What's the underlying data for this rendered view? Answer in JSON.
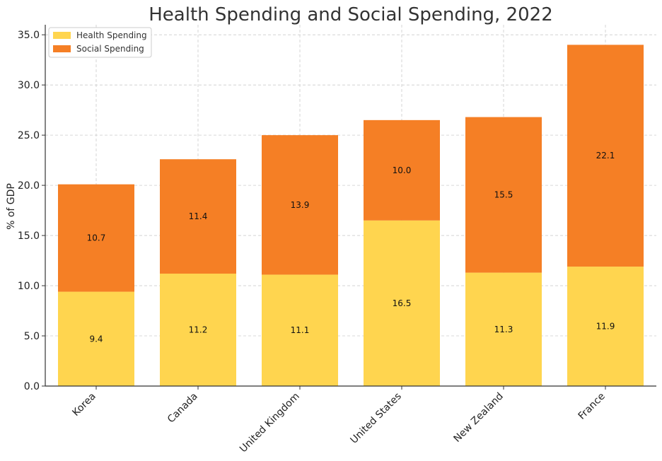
{
  "chart_data": {
    "type": "bar",
    "stacked": true,
    "title": "Health Spending and Social Spending, 2022",
    "xlabel": "",
    "ylabel": "% of GDP",
    "ylim": [
      0,
      36
    ],
    "yticks": [
      "0.0",
      "5.0",
      "10.0",
      "15.0",
      "20.0",
      "25.0",
      "30.0",
      "35.0"
    ],
    "categories": [
      "Korea",
      "Canada",
      "United Kingdom",
      "United States",
      "New Zealand",
      "France"
    ],
    "series": [
      {
        "name": "Health Spending",
        "color": "#FFD54F",
        "values": [
          9.4,
          11.2,
          11.1,
          16.5,
          11.3,
          11.9
        ]
      },
      {
        "name": "Social Spending",
        "color": "#F57F25",
        "values": [
          10.7,
          11.4,
          13.9,
          10.0,
          15.5,
          22.1
        ]
      }
    ],
    "grid": true,
    "legend_position": "top-left"
  }
}
